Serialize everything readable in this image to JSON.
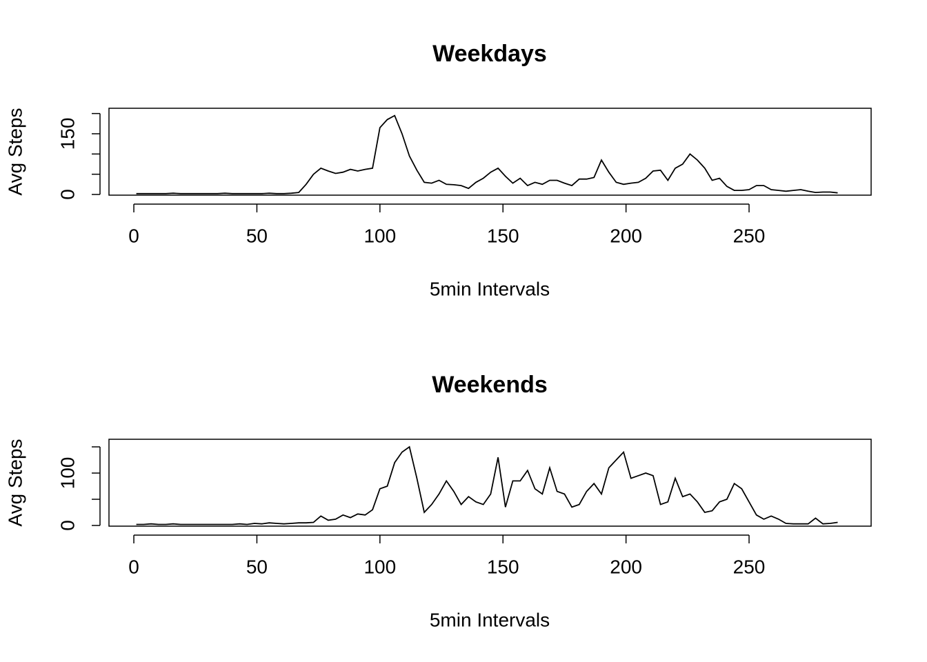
{
  "chart_data": [
    {
      "type": "line",
      "title": "Weekdays",
      "xlabel": "5min Intervals",
      "ylabel": "Avg Steps",
      "color": "#000000",
      "x": [
        1,
        4,
        7,
        10,
        13,
        16,
        19,
        22,
        25,
        28,
        31,
        34,
        37,
        40,
        43,
        46,
        49,
        52,
        55,
        58,
        61,
        64,
        67,
        70,
        73,
        76,
        79,
        82,
        85,
        88,
        91,
        94,
        97,
        100,
        103,
        106,
        109,
        112,
        115,
        118,
        121,
        124,
        127,
        130,
        133,
        136,
        139,
        142,
        145,
        148,
        151,
        154,
        157,
        160,
        163,
        166,
        169,
        172,
        175,
        178,
        181,
        184,
        187,
        190,
        193,
        196,
        199,
        202,
        205,
        208,
        211,
        214,
        217,
        220,
        223,
        226,
        229,
        232,
        235,
        238,
        241,
        244,
        247,
        250,
        253,
        256,
        259,
        262,
        265,
        268,
        271,
        274,
        277,
        280,
        283,
        286
      ],
      "values": [
        2,
        2,
        2,
        2,
        2,
        3,
        2,
        2,
        2,
        2,
        2,
        2,
        3,
        2,
        2,
        2,
        2,
        2,
        3,
        2,
        2,
        3,
        5,
        25,
        50,
        65,
        58,
        52,
        55,
        62,
        58,
        62,
        65,
        165,
        185,
        195,
        150,
        95,
        60,
        30,
        28,
        35,
        25,
        24,
        22,
        15,
        30,
        40,
        55,
        65,
        45,
        28,
        40,
        22,
        30,
        25,
        35,
        35,
        28,
        22,
        38,
        38,
        42,
        85,
        55,
        30,
        25,
        28,
        30,
        40,
        58,
        60,
        35,
        65,
        75,
        100,
        85,
        65,
        35,
        40,
        20,
        10,
        10,
        12,
        22,
        22,
        12,
        10,
        8,
        10,
        12,
        8,
        5,
        6,
        6,
        4
      ],
      "xlim": [
        -10.1,
        299.6
      ],
      "xticks": [
        0,
        50,
        100,
        150,
        200,
        250
      ],
      "ylim": [
        -1.7,
        213
      ],
      "yticks": [
        0,
        150
      ],
      "yminor_ticks": [
        50,
        100,
        200
      ]
    },
    {
      "type": "line",
      "title": "Weekends",
      "xlabel": "5min Intervals",
      "ylabel": "Avg Steps",
      "color": "#000000",
      "x": [
        1,
        4,
        7,
        10,
        13,
        16,
        19,
        22,
        25,
        28,
        31,
        34,
        37,
        40,
        43,
        46,
        49,
        52,
        55,
        58,
        61,
        64,
        67,
        70,
        73,
        76,
        79,
        82,
        85,
        88,
        91,
        94,
        97,
        100,
        103,
        106,
        109,
        112,
        115,
        118,
        121,
        124,
        127,
        130,
        133,
        136,
        139,
        142,
        145,
        148,
        151,
        154,
        157,
        160,
        163,
        166,
        169,
        172,
        175,
        178,
        181,
        184,
        187,
        190,
        193,
        196,
        199,
        202,
        205,
        208,
        211,
        214,
        217,
        220,
        223,
        226,
        229,
        232,
        235,
        238,
        241,
        244,
        247,
        250,
        253,
        256,
        259,
        262,
        265,
        268,
        271,
        274,
        277,
        280,
        283,
        286
      ],
      "values": [
        2,
        2,
        3,
        2,
        2,
        3,
        2,
        2,
        2,
        2,
        2,
        2,
        2,
        2,
        3,
        2,
        4,
        3,
        5,
        4,
        3,
        4,
        5,
        5,
        6,
        18,
        10,
        12,
        20,
        15,
        22,
        20,
        30,
        70,
        75,
        120,
        140,
        150,
        90,
        25,
        40,
        60,
        85,
        65,
        40,
        55,
        45,
        40,
        60,
        130,
        35,
        85,
        85,
        105,
        70,
        60,
        110,
        65,
        60,
        35,
        40,
        65,
        80,
        60,
        110,
        125,
        140,
        90,
        95,
        100,
        95,
        40,
        45,
        90,
        55,
        60,
        45,
        25,
        28,
        45,
        50,
        80,
        70,
        45,
        20,
        12,
        18,
        12,
        4,
        3,
        3,
        3,
        14,
        3,
        4,
        6
      ],
      "xlim": [
        -10.1,
        299.6
      ],
      "xticks": [
        0,
        50,
        100,
        150,
        200,
        250
      ],
      "ylim": [
        -1.3,
        164.5
      ],
      "yticks": [
        0,
        100
      ],
      "yminor_ticks": [
        50,
        150
      ]
    }
  ]
}
